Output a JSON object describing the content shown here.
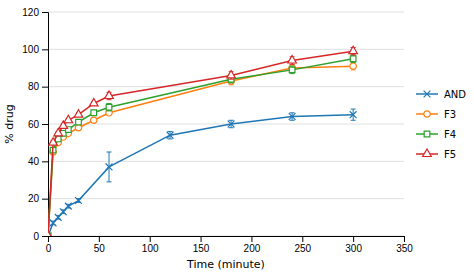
{
  "chart_data": {
    "type": "line",
    "xlabel": "Time (minute)",
    "ylabel": "% drug",
    "xlim": [
      0,
      350
    ],
    "ylim": [
      0,
      120
    ],
    "xticks": [
      0,
      50,
      100,
      150,
      200,
      250,
      300,
      350
    ],
    "yticks": [
      0,
      20,
      40,
      60,
      80,
      100,
      120
    ],
    "grid": "y",
    "legend": "right",
    "series": [
      {
        "name": "AND",
        "marker": "x",
        "x": [
          0,
          5,
          10,
          15,
          20,
          30,
          60,
          120,
          180,
          240,
          300
        ],
        "values": [
          0,
          7,
          10,
          13,
          16,
          19,
          37,
          54,
          60,
          64,
          65
        ],
        "errors": [
          0,
          1,
          1,
          1,
          1,
          1,
          8,
          2,
          2,
          2,
          3
        ]
      },
      {
        "name": "F3",
        "marker": "circle",
        "x": [
          0,
          5,
          10,
          15,
          20,
          30,
          45,
          60,
          180,
          240,
          300
        ],
        "values": [
          0,
          45,
          50,
          53,
          55,
          58,
          62,
          66,
          83,
          90,
          91
        ],
        "errors": [
          0,
          1,
          1,
          1,
          1,
          1,
          1,
          1,
          2,
          2,
          2
        ]
      },
      {
        "name": "F4",
        "marker": "square",
        "x": [
          0,
          5,
          10,
          15,
          20,
          30,
          45,
          60,
          180,
          240,
          300
        ],
        "values": [
          0,
          46,
          52,
          55,
          57,
          61,
          66,
          69,
          84,
          89,
          95
        ],
        "errors": [
          0,
          1,
          1,
          1,
          1,
          1,
          1,
          2,
          2,
          2,
          2
        ]
      },
      {
        "name": "F5",
        "marker": "triangle",
        "x": [
          0,
          5,
          10,
          15,
          20,
          30,
          45,
          60,
          180,
          240,
          300
        ],
        "values": [
          0,
          50,
          55,
          59,
          62,
          65,
          71,
          75,
          86,
          94,
          99
        ],
        "errors": [
          0,
          1,
          1,
          1,
          1,
          1,
          1,
          2,
          2,
          2,
          2
        ]
      }
    ]
  }
}
